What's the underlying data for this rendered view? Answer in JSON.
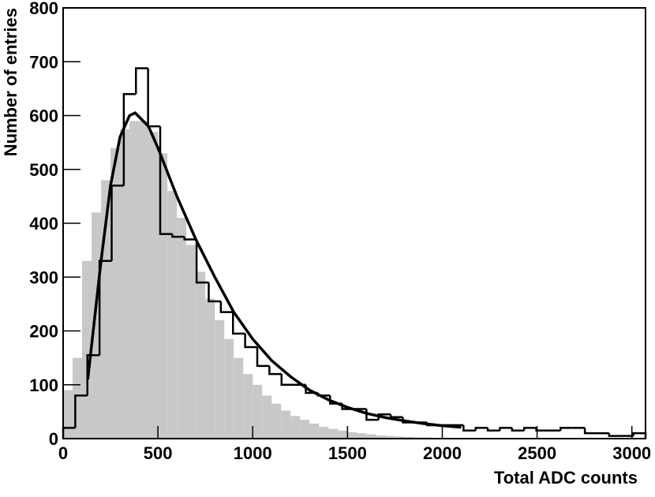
{
  "chart_data": {
    "type": "histogram",
    "x_label": "Total ADC counts",
    "y_label": "Number of entries",
    "xlim": [
      0,
      3072
    ],
    "ylim": [
      0,
      800
    ],
    "xticks": [
      0,
      500,
      1000,
      1500,
      2000,
      2500,
      3000
    ],
    "yticks": [
      0,
      100,
      200,
      300,
      400,
      500,
      600,
      700,
      800
    ],
    "series": [
      {
        "color": "#c8c8c8",
        "filled": true,
        "bins": [
          0,
          50,
          100,
          150,
          200,
          250,
          300,
          350,
          400,
          450,
          500,
          550,
          600,
          650,
          700,
          750,
          800,
          850,
          900,
          950,
          1000,
          1050,
          1100,
          1150,
          1200,
          1250,
          1300,
          1350,
          1400,
          1450,
          1500,
          1550,
          1600,
          1650,
          1700,
          1750,
          1800,
          1850,
          1900,
          1950,
          2000,
          2050,
          2100
        ],
        "values": [
          90,
          150,
          330,
          420,
          480,
          540,
          575,
          590,
          590,
          570,
          530,
          460,
          410,
          360,
          310,
          260,
          220,
          185,
          150,
          120,
          100,
          80,
          65,
          52,
          42,
          35,
          28,
          22,
          18,
          15,
          12,
          10,
          8,
          6,
          5,
          4,
          3,
          2,
          2,
          1,
          1,
          1
        ]
      },
      {
        "color": "#000000",
        "filled": false,
        "bins": [
          0,
          64,
          128,
          192,
          256,
          320,
          384,
          448,
          512,
          576,
          640,
          704,
          768,
          832,
          896,
          960,
          1024,
          1088,
          1152,
          1216,
          1280,
          1344,
          1408,
          1472,
          1536,
          1600,
          1664,
          1728,
          1792,
          1856,
          1920,
          1984,
          2048,
          2112,
          2176,
          2240,
          2304,
          2368,
          2432,
          2496,
          2560,
          2624,
          2688,
          2752,
          2816,
          2880,
          2944,
          3008,
          3072
        ],
        "values": [
          20,
          80,
          155,
          330,
          470,
          640,
          688,
          580,
          380,
          375,
          370,
          290,
          255,
          235,
          195,
          170,
          135,
          120,
          100,
          100,
          85,
          80,
          65,
          55,
          55,
          35,
          45,
          40,
          30,
          30,
          25,
          25,
          25,
          15,
          20,
          15,
          20,
          15,
          20,
          15,
          15,
          20,
          20,
          10,
          10,
          5,
          5,
          10
        ]
      }
    ],
    "curve": {
      "color": "#000000",
      "x": [
        130,
        200,
        250,
        300,
        350,
        380,
        450,
        500,
        600,
        700,
        800,
        900,
        1000,
        1100,
        1200,
        1300,
        1400,
        1500,
        1600,
        1700,
        1800,
        1900,
        2000,
        2100
      ],
      "y": [
        110,
        330,
        470,
        560,
        600,
        605,
        580,
        540,
        450,
        370,
        300,
        235,
        185,
        145,
        115,
        90,
        72,
        58,
        47,
        39,
        33,
        28,
        24,
        21
      ]
    }
  }
}
